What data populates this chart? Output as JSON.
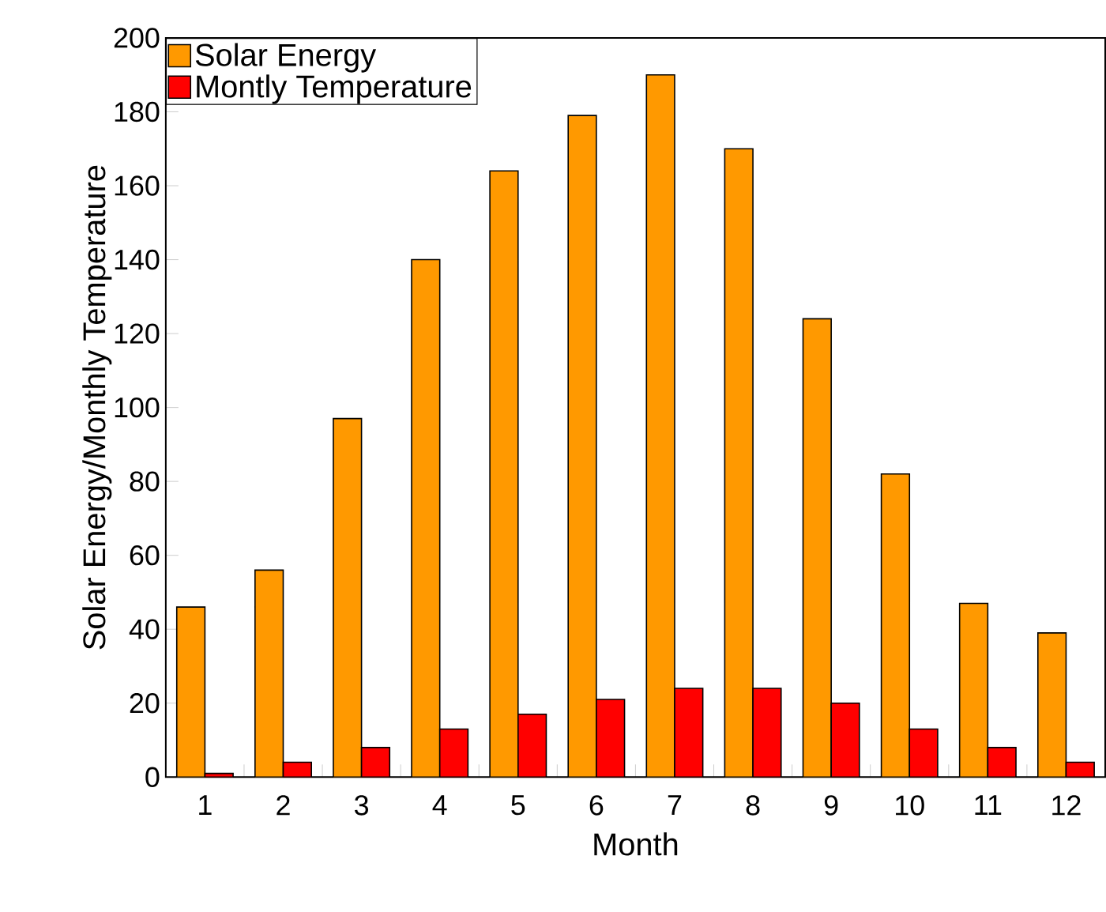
{
  "chart_data": {
    "type": "bar",
    "xlabel": "Month",
    "ylabel": "Solar Energy/Monthly Temperature",
    "categories": [
      "1",
      "2",
      "3",
      "4",
      "5",
      "6",
      "7",
      "8",
      "9",
      "10",
      "11",
      "12"
    ],
    "series": [
      {
        "name": "Solar Energy",
        "color": "#ff9900",
        "values": [
          46,
          56,
          97,
          140,
          164,
          179,
          190,
          170,
          124,
          82,
          47,
          39
        ]
      },
      {
        "name": "Montly Temperature",
        "color": "#ff0000",
        "values": [
          1,
          4,
          8,
          13,
          17,
          21,
          24,
          24,
          20,
          13,
          8,
          4
        ]
      }
    ],
    "ylim": [
      0,
      200
    ],
    "yticks": [
      0,
      20,
      40,
      60,
      80,
      100,
      120,
      140,
      160,
      180,
      200
    ],
    "grid": false,
    "legend": "top left"
  }
}
